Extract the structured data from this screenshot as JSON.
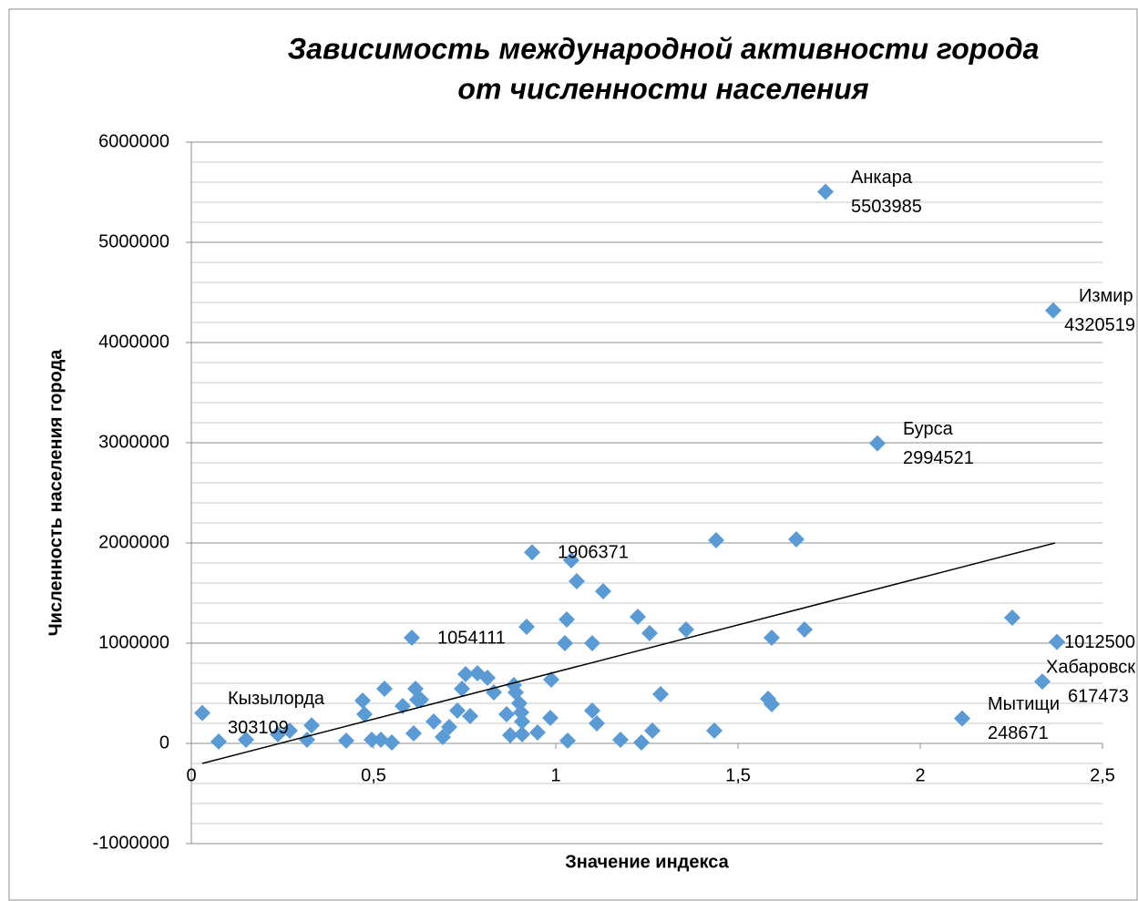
{
  "chart_data": {
    "type": "scatter",
    "title": [
      "Зависимость международной активности города",
      "от численности населения"
    ],
    "x_label": "Значение индекса",
    "y_label": "Численность населения города",
    "xlim": [
      0,
      2.5
    ],
    "xticks": [
      0,
      {
        "value": 0.5,
        "label": "0,5"
      },
      1,
      {
        "value": 1.5,
        "label": "1,5"
      },
      2,
      {
        "value": 2.5,
        "label": "2,5"
      }
    ],
    "ylim": [
      -1000000,
      6000000
    ],
    "yticks": [
      -1000000,
      0,
      1000000,
      2000000,
      3000000,
      4000000,
      5000000,
      6000000
    ],
    "grid": true,
    "minor_grid": true,
    "series": [
      {
        "color": "#5b9bd5",
        "x": [
          0.03,
          0.075,
          0.15,
          0.2375,
          0.27,
          0.3175,
          0.33,
          0.425,
          0.47,
          0.475,
          0.495,
          0.52,
          0.53,
          0.55,
          0.58,
          0.605,
          0.615,
          0.61,
          0.62,
          0.63,
          0.665,
          0.69,
          0.7075,
          0.73,
          0.7425,
          0.7525,
          0.765,
          0.785,
          0.8125,
          0.83,
          0.865,
          0.875,
          0.885,
          0.89,
          0.9,
          0.905,
          0.9075,
          0.9075,
          0.92,
          0.935,
          0.95,
          0.985,
          0.9875,
          1.025,
          1.03,
          1.0325,
          1.0425,
          1.0575,
          1.1,
          1.1,
          1.1125,
          1.13,
          1.1775,
          1.225,
          1.235,
          1.2575,
          1.265,
          1.2875,
          1.3575,
          1.435,
          1.44,
          1.5825,
          1.5925,
          1.5925,
          1.66,
          1.6825,
          1.74,
          1.8825,
          2.115,
          2.2525,
          2.335,
          2.365,
          2.375
        ],
        "values": [
          303109,
          18000,
          36000,
          91000,
          127000,
          36000,
          180000,
          27000,
          427000,
          291000,
          36000,
          36000,
          545000,
          9000,
          373000,
          1054111,
          545000,
          100000,
          436000,
          436000,
          218000,
          64000,
          164000,
          327000,
          545000,
          691000,
          273000,
          700000,
          655000,
          509000,
          291000,
          82000,
          582000,
          509000,
          400000,
          309000,
          91000,
          218000,
          1164000,
          1906371,
          109000,
          255000,
          636000,
          1000000,
          1236000,
          27000,
          1827000,
          1618000,
          327000,
          1000000,
          200000,
          1518000,
          36000,
          1264000,
          9000,
          1100000,
          127000,
          491000,
          1136000,
          127000,
          2027000,
          445000,
          1055000,
          391000,
          2036000,
          1136000,
          5503985,
          2994521,
          248671,
          1255000,
          617473,
          4320519,
          1012500
        ],
        "point_names": [
          "Кызылорда",
          null,
          null,
          null,
          null,
          null,
          null,
          null,
          null,
          null,
          null,
          null,
          null,
          null,
          null,
          null,
          null,
          null,
          null,
          null,
          null,
          null,
          null,
          null,
          null,
          null,
          null,
          null,
          null,
          null,
          null,
          null,
          null,
          null,
          null,
          null,
          null,
          null,
          null,
          null,
          null,
          null,
          null,
          null,
          null,
          null,
          null,
          null,
          null,
          null,
          null,
          null,
          null,
          null,
          null,
          null,
          null,
          null,
          null,
          null,
          null,
          null,
          null,
          null,
          null,
          null,
          "Анкара",
          "Бурса",
          "Мытищи",
          null,
          "Хабаровск",
          "Измир",
          null
        ],
        "labeled": [
          0,
          15,
          39,
          66,
          67,
          68,
          70,
          71,
          72
        ]
      }
    ],
    "trendline": {
      "color": "#000000",
      "x": [
        0.03,
        2.37
      ],
      "y": [
        -200000,
        2000000
      ]
    }
  }
}
